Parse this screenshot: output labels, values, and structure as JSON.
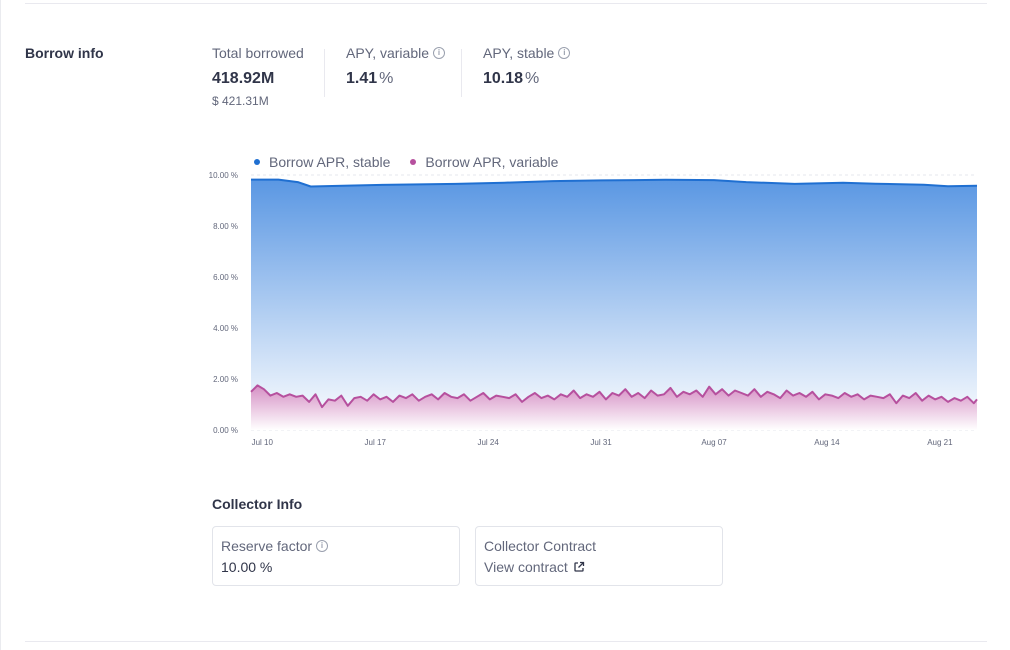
{
  "section": {
    "title": "Borrow info"
  },
  "stats": {
    "total_borrowed": {
      "label": "Total borrowed",
      "value": "418.92M",
      "usd": "$ 421.31M"
    },
    "apy_variable": {
      "label": "APY, variable",
      "value": "1.41",
      "unit": "%"
    },
    "apy_stable": {
      "label": "APY, stable",
      "value": "10.18",
      "unit": "%"
    }
  },
  "legend": {
    "stable": {
      "label": "Borrow APR, stable",
      "color": "#1f6fd1"
    },
    "variable": {
      "label": "Borrow APR, variable",
      "color": "#b6509e"
    }
  },
  "chart_data": {
    "type": "area",
    "title": "",
    "xlabel": "",
    "ylabel": "",
    "ylim": [
      0,
      10
    ],
    "y_ticks": [
      "0.00 %",
      "2.00 %",
      "4.00 %",
      "6.00 %",
      "8.00 %",
      "10.00 %"
    ],
    "x_ticks": [
      "Jul 10",
      "Jul 17",
      "Jul 24",
      "Jul 31",
      "Aug 07",
      "Aug 14",
      "Aug 21"
    ],
    "x_tick_days": [
      0,
      7,
      14,
      21,
      28,
      35,
      42
    ],
    "x_range_days": [
      -0.7,
      44.3
    ],
    "grid": true,
    "legend_position": "top-left",
    "series": [
      {
        "name": "Borrow APR, stable",
        "color": "#1f6fd1",
        "x_days": [
          -0.7,
          1.0,
          2.2,
          3.0,
          5.0,
          8.0,
          12.0,
          15.0,
          18.0,
          21.0,
          25.0,
          28.0,
          30.0,
          33.0,
          36.0,
          38.0,
          41.0,
          42.5,
          44.3
        ],
        "values": [
          9.82,
          9.82,
          9.72,
          9.55,
          9.58,
          9.62,
          9.65,
          9.7,
          9.76,
          9.79,
          9.81,
          9.8,
          9.72,
          9.65,
          9.7,
          9.66,
          9.62,
          9.56,
          9.58
        ]
      },
      {
        "name": "Borrow APR, variable",
        "color": "#b6509e",
        "x_days": [
          -0.7,
          -0.3,
          0.1,
          0.5,
          0.9,
          1.3,
          1.7,
          2.1,
          2.5,
          2.9,
          3.3,
          3.7,
          4.1,
          4.5,
          4.9,
          5.3,
          5.7,
          6.1,
          6.5,
          6.9,
          7.3,
          7.7,
          8.1,
          8.5,
          8.9,
          9.3,
          9.7,
          10.1,
          10.5,
          10.9,
          11.3,
          11.7,
          12.1,
          12.5,
          12.9,
          13.3,
          13.7,
          14.1,
          14.5,
          14.9,
          15.3,
          15.7,
          16.1,
          16.5,
          16.9,
          17.3,
          17.7,
          18.1,
          18.5,
          18.9,
          19.3,
          19.7,
          20.1,
          20.5,
          20.9,
          21.3,
          21.7,
          22.1,
          22.5,
          22.9,
          23.3,
          23.7,
          24.1,
          24.5,
          24.9,
          25.3,
          25.7,
          26.1,
          26.5,
          26.9,
          27.3,
          27.7,
          28.1,
          28.5,
          28.9,
          29.3,
          29.7,
          30.1,
          30.5,
          30.9,
          31.3,
          31.7,
          32.1,
          32.5,
          32.9,
          33.3,
          33.7,
          34.1,
          34.5,
          34.9,
          35.3,
          35.7,
          36.1,
          36.5,
          36.9,
          37.3,
          37.7,
          38.1,
          38.5,
          38.9,
          39.3,
          39.7,
          40.1,
          40.5,
          40.9,
          41.3,
          41.7,
          42.1,
          42.5,
          42.9,
          43.3,
          43.7,
          44.1,
          44.3
        ],
        "values": [
          1.5,
          1.75,
          1.6,
          1.35,
          1.45,
          1.3,
          1.4,
          1.3,
          1.35,
          1.1,
          1.4,
          0.9,
          1.2,
          1.15,
          1.35,
          0.95,
          1.25,
          1.3,
          1.15,
          1.4,
          1.2,
          1.3,
          1.1,
          1.35,
          1.25,
          1.4,
          1.15,
          1.3,
          1.4,
          1.2,
          1.45,
          1.3,
          1.25,
          1.4,
          1.15,
          1.3,
          1.45,
          1.2,
          1.35,
          1.3,
          1.25,
          1.4,
          1.1,
          1.3,
          1.45,
          1.25,
          1.35,
          1.2,
          1.4,
          1.3,
          1.55,
          1.25,
          1.4,
          1.3,
          1.5,
          1.2,
          1.45,
          1.35,
          1.6,
          1.3,
          1.45,
          1.25,
          1.55,
          1.35,
          1.4,
          1.65,
          1.3,
          1.5,
          1.4,
          1.55,
          1.3,
          1.7,
          1.4,
          1.6,
          1.35,
          1.55,
          1.45,
          1.35,
          1.6,
          1.3,
          1.5,
          1.4,
          1.25,
          1.55,
          1.35,
          1.45,
          1.3,
          1.5,
          1.2,
          1.4,
          1.35,
          1.25,
          1.45,
          1.3,
          1.4,
          1.2,
          1.35,
          1.3,
          1.25,
          1.4,
          1.05,
          1.35,
          1.25,
          1.45,
          1.15,
          1.35,
          1.2,
          1.3,
          1.1,
          1.25,
          1.15,
          1.3,
          1.05,
          1.2
        ]
      }
    ]
  },
  "collector": {
    "title": "Collector Info",
    "reserve_factor": {
      "label": "Reserve factor",
      "value": "10.00 %"
    },
    "contract": {
      "label": "Collector Contract",
      "link": "View contract"
    }
  }
}
